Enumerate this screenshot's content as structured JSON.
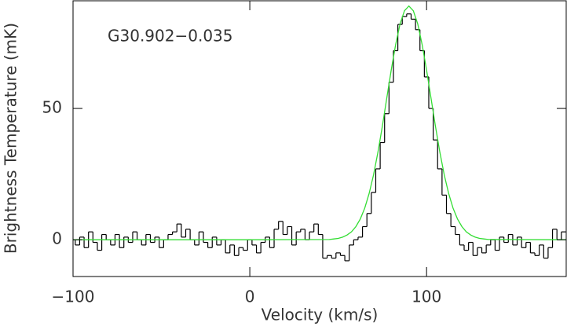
{
  "chart_data": {
    "type": "step",
    "annotation": "G30.902−0.035",
    "xlabel": "Velocity (km/s)",
    "ylabel": "Brightness Temperature (mK)",
    "xlim": [
      -100,
      179
    ],
    "ylim": [
      -14,
      91
    ],
    "xticks": [
      {
        "value": -100,
        "label": "−100"
      },
      0,
      100
    ],
    "yticks": [
      0,
      50
    ],
    "series": [
      {
        "color": "#000000",
        "step": true,
        "x": [
          -100,
          -97.5,
          -95,
          -92.5,
          -90,
          -87.5,
          -85,
          -82.5,
          -80,
          -77.5,
          -75,
          -72.5,
          -70,
          -67.5,
          -65,
          -62.5,
          -60,
          -57.5,
          -55,
          -52.5,
          -50,
          -47.5,
          -45,
          -42.5,
          -40,
          -37.5,
          -35,
          -32.5,
          -30,
          -27.5,
          -25,
          -22.5,
          -20,
          -17.5,
          -15,
          -12.5,
          -10,
          -7.5,
          -5,
          -2.5,
          0,
          2.5,
          5,
          7.5,
          10,
          12.5,
          15,
          17.5,
          20,
          22.5,
          25,
          27.5,
          30,
          32.5,
          35,
          37.5,
          40,
          42.5,
          45,
          47.5,
          50,
          52.5,
          55,
          57.5,
          60,
          62.5,
          65,
          67.5,
          70,
          72.5,
          75,
          77.5,
          80,
          82.5,
          85,
          87.5,
          90,
          92.5,
          95,
          97.5,
          100,
          102.5,
          105,
          107.5,
          110,
          112.5,
          115,
          117.5,
          120,
          122.5,
          125,
          127.5,
          130,
          132.5,
          135,
          137.5,
          140,
          142.5,
          145,
          147.5,
          150,
          152.5,
          155,
          157.5,
          160,
          162.5,
          165,
          167.5,
          170,
          172.5,
          175,
          177.5
        ],
        "values": [
          0,
          -2,
          1,
          -3,
          3,
          -1,
          -4,
          2,
          0,
          -2,
          2,
          -3,
          1,
          -1,
          3,
          0,
          -2,
          2,
          -1,
          1,
          -3,
          0,
          2,
          3,
          6,
          1,
          4,
          0,
          -2,
          3,
          -1,
          -3,
          1,
          -2,
          0,
          -5,
          -2,
          -6,
          -3,
          -4,
          0,
          -2,
          -5,
          -1,
          1,
          -3,
          4,
          7,
          2,
          5,
          -2,
          3,
          4,
          0,
          3,
          6,
          2,
          -7,
          -6,
          -7,
          -5,
          -6,
          -8,
          -2,
          0,
          1,
          5,
          10,
          18,
          27,
          37,
          48,
          60,
          72,
          82,
          85,
          86,
          84,
          80,
          72,
          62,
          50,
          38,
          27,
          17,
          10,
          5,
          2,
          -2,
          -4,
          -1,
          -6,
          -3,
          -5,
          -2,
          0,
          -4,
          1,
          -1,
          2,
          -2,
          1,
          -3,
          -1,
          -5,
          -6,
          -2,
          -7,
          -3,
          4,
          0,
          3
        ]
      },
      {
        "color": "#33dd33",
        "step": false,
        "x": [
          -100,
          0,
          45,
          47.5,
          50,
          52.5,
          55,
          57.5,
          60,
          62.5,
          65,
          67.5,
          70,
          72.5,
          75,
          77.5,
          80,
          82.5,
          85,
          87.5,
          90,
          92.5,
          95,
          97.5,
          100,
          102.5,
          105,
          107.5,
          110,
          112.5,
          115,
          117.5,
          120,
          122.5,
          125,
          127.5,
          130,
          132.5,
          135,
          179
        ],
        "values": [
          0,
          0,
          0.1,
          0.3,
          0.5,
          1.0,
          1.8,
          3.0,
          5.0,
          7.9,
          12.0,
          17.6,
          24.7,
          33.4,
          43.3,
          54.0,
          64.6,
          74.3,
          82.2,
          87.2,
          89,
          87.2,
          82.2,
          74.3,
          64.6,
          54.0,
          43.3,
          33.4,
          24.7,
          17.6,
          12.0,
          7.9,
          5.0,
          3.0,
          1.8,
          1.0,
          0.5,
          0.3,
          0.1,
          0
        ]
      }
    ]
  }
}
